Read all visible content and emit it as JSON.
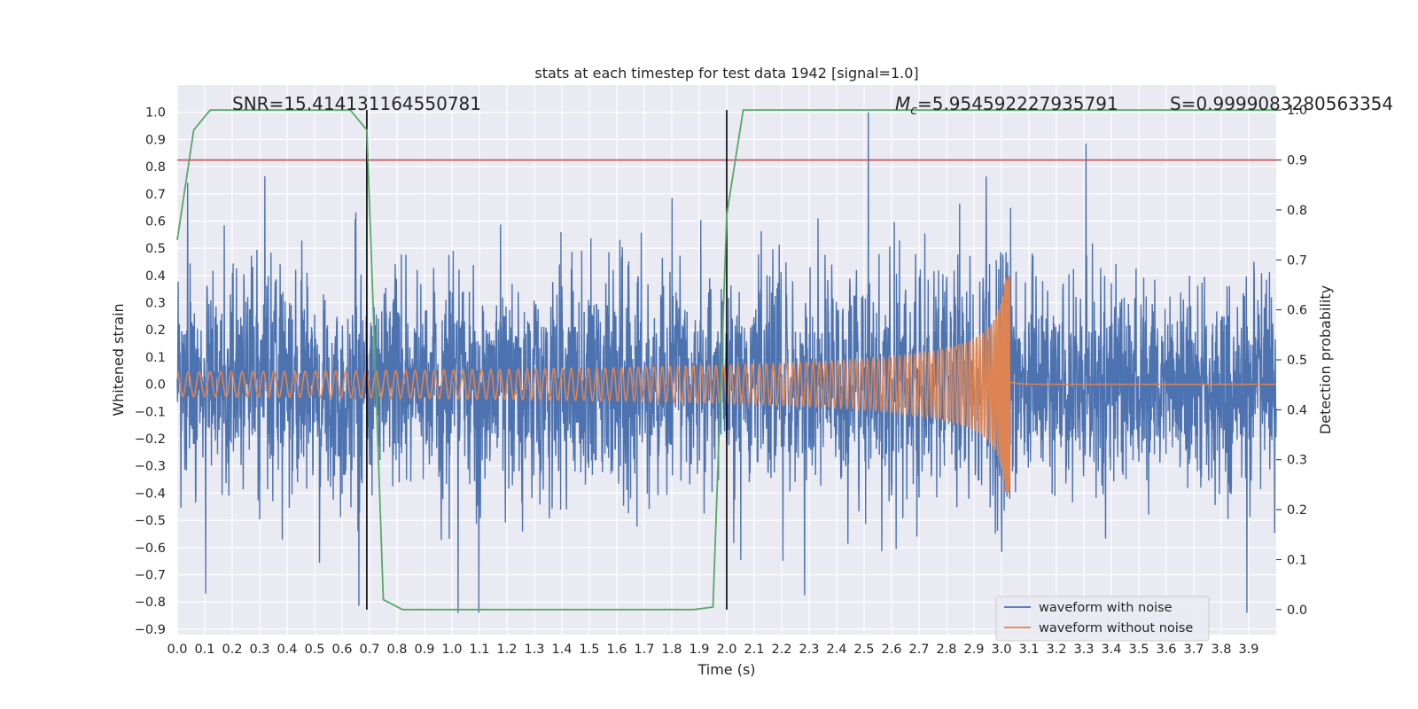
{
  "chart_data": {
    "type": "line",
    "title": "stats at each timestep for test data 1942 [signal=1.0]",
    "xlabel": "Time (s)",
    "ylabel": "Whitened strain",
    "ylabel_right": "Detection probability",
    "xlim": [
      0.0,
      4.0
    ],
    "ylim": [
      -0.92,
      1.1
    ],
    "ylim_right": [
      -0.05,
      1.05
    ],
    "x_ticks": [
      "0.0",
      "0.1",
      "0.2",
      "0.3",
      "0.4",
      "0.5",
      "0.6",
      "0.7",
      "0.8",
      "0.9",
      "1.0",
      "1.1",
      "1.2",
      "1.3",
      "1.4",
      "1.5",
      "1.6",
      "1.7",
      "1.8",
      "1.9",
      "2.0",
      "2.1",
      "2.2",
      "2.3",
      "2.4",
      "2.5",
      "2.6",
      "2.7",
      "2.8",
      "2.9",
      "3.0",
      "3.1",
      "3.2",
      "3.3",
      "3.4",
      "3.5",
      "3.6",
      "3.7",
      "3.8",
      "3.9"
    ],
    "y_ticks": [
      "1.0",
      "0.9",
      "0.8",
      "0.7",
      "0.6",
      "0.5",
      "0.4",
      "0.3",
      "0.2",
      "0.1",
      "0.0",
      "−0.1",
      "−0.2",
      "−0.3",
      "−0.4",
      "−0.5",
      "−0.6",
      "−0.7",
      "−0.8",
      "−0.9"
    ],
    "y_ticks_right": [
      "1.0",
      "0.9",
      "0.8",
      "0.7",
      "0.6",
      "0.5",
      "0.4",
      "0.3",
      "0.2",
      "0.1",
      "0.0"
    ],
    "grid": true,
    "legend_position": "lower-right",
    "colors": {
      "noise": "#4c72b0",
      "clean": "#dd8452",
      "probability": "#55a868",
      "threshold": "#c44e52",
      "markers": "#000000",
      "background": "#eaeaf2",
      "grid": "#ffffff"
    },
    "annotations": {
      "snr": "SNR=15.414131164550781",
      "mc_prefix": "M",
      "mc_sub": "c",
      "mc_value": "=5.954592227935791",
      "s": "S=0.9999083280563354"
    },
    "series": [
      {
        "name": "waveform with noise",
        "kind": "noise",
        "stats": {
          "x_start": 0.0,
          "x_end": 4.0,
          "amplitude_range": [
            -0.84,
            1.0
          ]
        }
      },
      {
        "name": "waveform without noise",
        "kind": "chirp",
        "stats": {
          "x_start": 0.0,
          "merger_time": 3.03,
          "initial_amplitude": 0.045,
          "peak_amplitude": 0.4
        }
      },
      {
        "name": "",
        "kind": "probability",
        "axis": "right",
        "x": [
          0.0,
          0.06,
          0.12,
          0.2,
          0.3,
          0.5,
          0.6,
          0.63,
          0.69,
          0.72,
          0.75,
          0.82,
          1.0,
          1.5,
          1.88,
          1.95,
          2.0,
          2.06,
          2.5,
          3.0,
          3.5,
          4.0
        ],
        "y": [
          0.74,
          0.96,
          1.0,
          1.0,
          1.0,
          1.0,
          1.0,
          1.0,
          0.96,
          0.5,
          0.02,
          0.0,
          0.0,
          0.0,
          0.0,
          0.005,
          0.79,
          1.0,
          1.0,
          1.0,
          1.0,
          1.0
        ]
      }
    ],
    "threshold_right": 0.9,
    "vertical_markers": [
      0.69,
      2.0
    ],
    "vertical_marker_range_right": [
      0.0,
      1.0
    ]
  }
}
